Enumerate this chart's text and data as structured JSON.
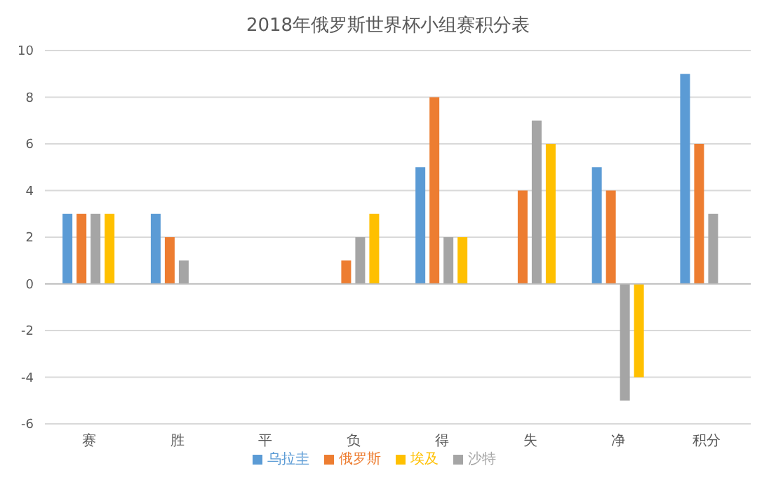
{
  "chart_data": {
    "type": "bar",
    "title": "2018年俄罗斯世界杯小组赛积分表",
    "categories": [
      "赛",
      "胜",
      "平",
      "负",
      "得",
      "失",
      "净",
      "积分"
    ],
    "series": [
      {
        "name": "乌拉圭",
        "color": "#5b9bd5",
        "values": [
          3,
          3,
          0,
          0,
          5,
          0,
          5,
          9
        ]
      },
      {
        "name": "俄罗斯",
        "color": "#ed7d31",
        "values": [
          3,
          2,
          0,
          1,
          8,
          4,
          4,
          6
        ]
      },
      {
        "name": "沙特",
        "color": "#a5a5a5",
        "values": [
          3,
          1,
          0,
          2,
          2,
          7,
          -5,
          3
        ]
      },
      {
        "name": "埃及",
        "color": "#ffc000",
        "values": [
          3,
          0,
          0,
          3,
          2,
          6,
          -4,
          0
        ]
      }
    ],
    "ylim": [
      -6,
      10
    ],
    "yticks": [
      -6,
      -4,
      -2,
      0,
      2,
      4,
      6,
      8,
      10
    ],
    "grid": "y",
    "legend": "bottom"
  }
}
